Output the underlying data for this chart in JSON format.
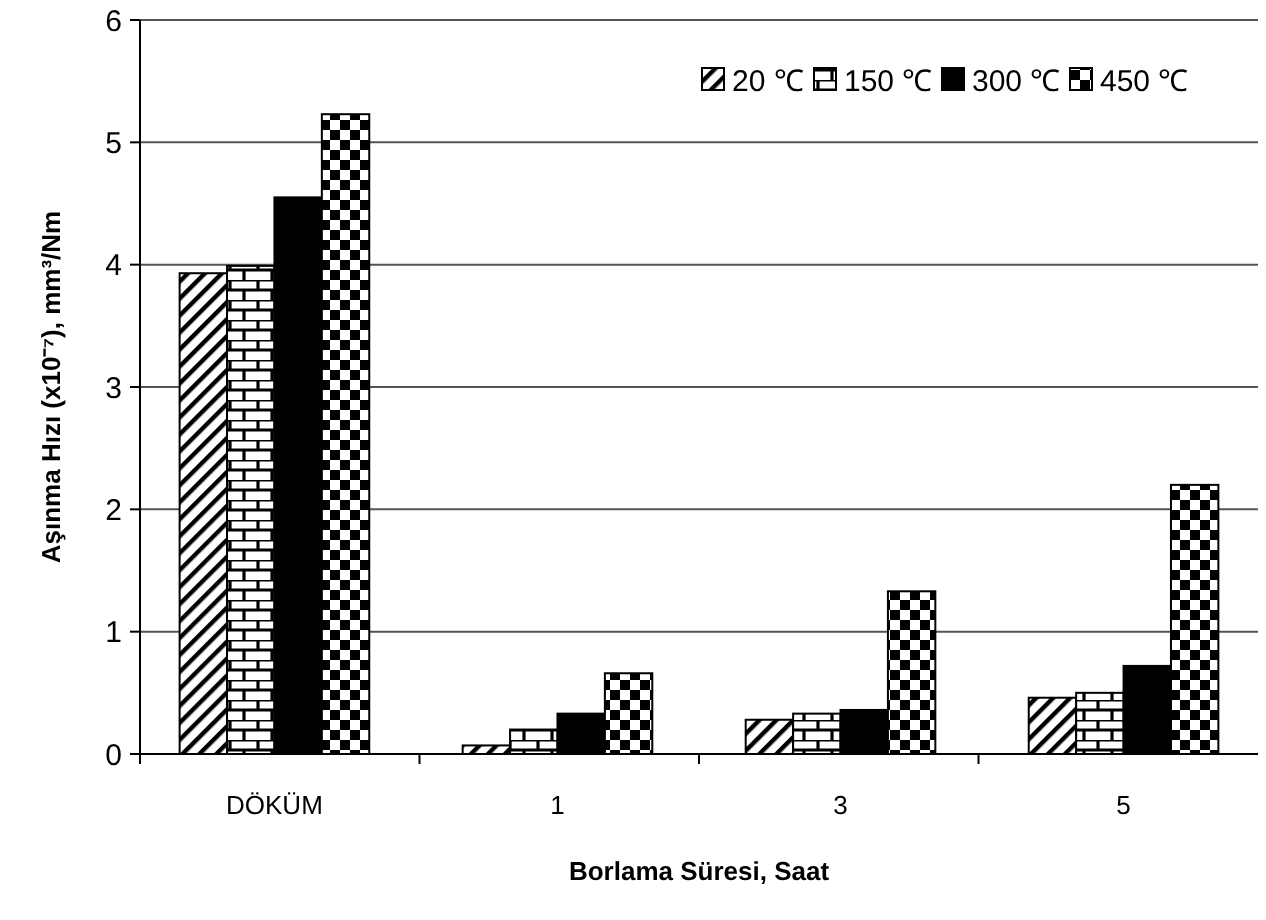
{
  "chart_data": {
    "type": "bar",
    "xlabel": "Borlama Süresi, Saat",
    "ylabel": "Aşınma Hızı (x10⁻⁷), mm³/Nm",
    "categories": [
      "DÖKÜM",
      "1",
      "3",
      "5"
    ],
    "series": [
      {
        "name": "20 ℃",
        "color": "#000000",
        "values": [
          3.93,
          0.07,
          0.28,
          0.46
        ]
      },
      {
        "name": "150 ℃",
        "color": "#000000",
        "values": [
          3.99,
          0.2,
          0.33,
          0.5
        ]
      },
      {
        "name": "300 ℃",
        "color": "#000000",
        "values": [
          4.55,
          0.33,
          0.36,
          0.72
        ]
      },
      {
        "name": "450 ℃",
        "color": "#000000",
        "values": [
          5.23,
          0.66,
          1.33,
          2.2
        ]
      }
    ],
    "ylim": [
      0,
      6
    ],
    "yticks": [
      0,
      1,
      2,
      3,
      4,
      5,
      6
    ],
    "grid": "y",
    "legend": "top right"
  }
}
